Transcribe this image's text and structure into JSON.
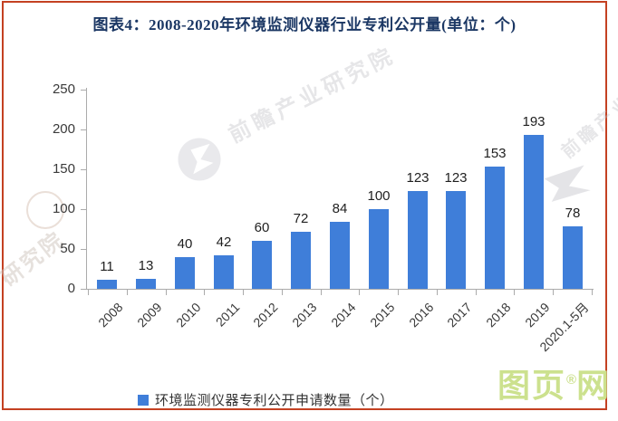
{
  "page": {
    "title": "图表4：2008-2020年环境监测仪器行业专利公开量(单位：个)",
    "title_color": "#1B3764",
    "border_color": "#C44122",
    "axis_color": "#ABABAB"
  },
  "chart_data": {
    "type": "bar",
    "title": "图表4：2008-2020年环境监测仪器行业专利公开量(单位：个)",
    "categories": [
      "2008",
      "2009",
      "2010",
      "2011",
      "2012",
      "2013",
      "2014",
      "2015",
      "2016",
      "2017",
      "2018",
      "2019",
      "2020.1-5月"
    ],
    "values": [
      11,
      13,
      40,
      42,
      60,
      72,
      84,
      100,
      123,
      123,
      153,
      193,
      78
    ],
    "series_label": "环境监测仪器专利公开申请数量（个）",
    "xlabel": "",
    "ylabel": "",
    "ylim": [
      0,
      250
    ],
    "ytick_step": 50,
    "yticks": [
      0,
      50,
      100,
      150,
      200,
      250
    ],
    "bar_color": "#3F7ED9",
    "grid": false,
    "legend_position": "bottom",
    "value_labels_shown": true
  },
  "legend": {
    "label": "环境监测仪器专利公开申请数量（个）",
    "swatch_color": "#3F7ED9"
  },
  "watermarks": {
    "diagonal_text": "前瞻产业研究院",
    "right_text": "前瞻产业研究院",
    "corner_text": "研究院"
  },
  "footer_logo": {
    "text_left": "图页",
    "reg_mark": "®",
    "text_right": "网",
    "color": "#CCE18E"
  }
}
